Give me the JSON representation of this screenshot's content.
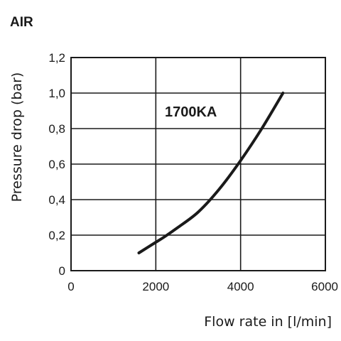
{
  "chart_data": {
    "type": "line",
    "title": "AIR",
    "xlabel": "Flow rate in [l/min]",
    "ylabel": "Pressure drop (bar)",
    "xlim": [
      0,
      6000
    ],
    "ylim": [
      0,
      1.2
    ],
    "x_ticks": [
      "0",
      "2000",
      "4000",
      "6000"
    ],
    "y_ticks": [
      "0",
      "0,2",
      "0,4",
      "0,6",
      "0,8",
      "1,0",
      "1,2"
    ],
    "grid": true,
    "series": [
      {
        "name": "1700KA",
        "x": [
          1600,
          2000,
          2200,
          2500,
          3000,
          3500,
          4000,
          4500,
          5000
        ],
        "y": [
          0.1,
          0.16,
          0.19,
          0.24,
          0.33,
          0.46,
          0.62,
          0.8,
          1.0
        ]
      }
    ]
  }
}
